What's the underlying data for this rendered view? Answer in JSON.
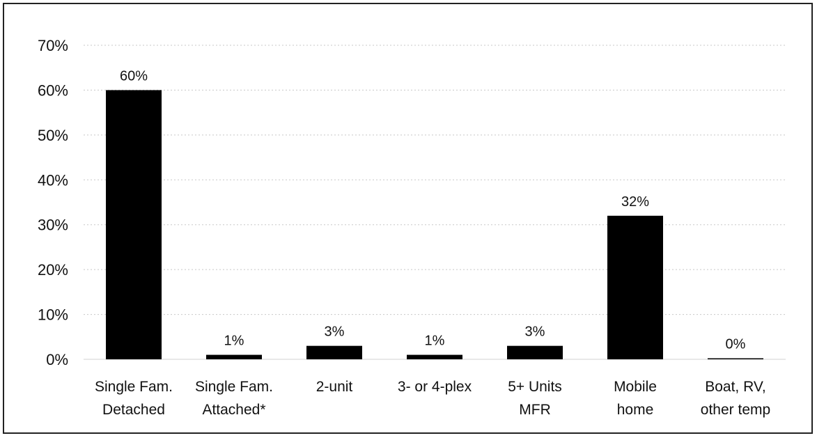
{
  "chart_data": {
    "type": "bar",
    "categories": [
      [
        "Single Fam.",
        "Detached"
      ],
      [
        "Single Fam.",
        "Attached*"
      ],
      [
        "2-unit"
      ],
      [
        "3- or 4-plex"
      ],
      [
        "5+ Units",
        "MFR"
      ],
      [
        "Mobile",
        "home"
      ],
      [
        "Boat, RV,",
        "other temp"
      ]
    ],
    "values": [
      60,
      1,
      3,
      1,
      3,
      32,
      0
    ],
    "data_labels": [
      "60%",
      "1%",
      "3%",
      "1%",
      "3%",
      "32%",
      "0%"
    ],
    "ylim": [
      0,
      70
    ],
    "yticks": [
      "0%",
      "10%",
      "20%",
      "30%",
      "40%",
      "50%",
      "60%",
      "70%"
    ],
    "ytick_values": [
      0,
      10,
      20,
      30,
      40,
      50,
      60,
      70
    ],
    "grid": true,
    "legend": "none",
    "title": "",
    "xlabel": "",
    "ylabel": "",
    "bar_color": "#000000"
  }
}
